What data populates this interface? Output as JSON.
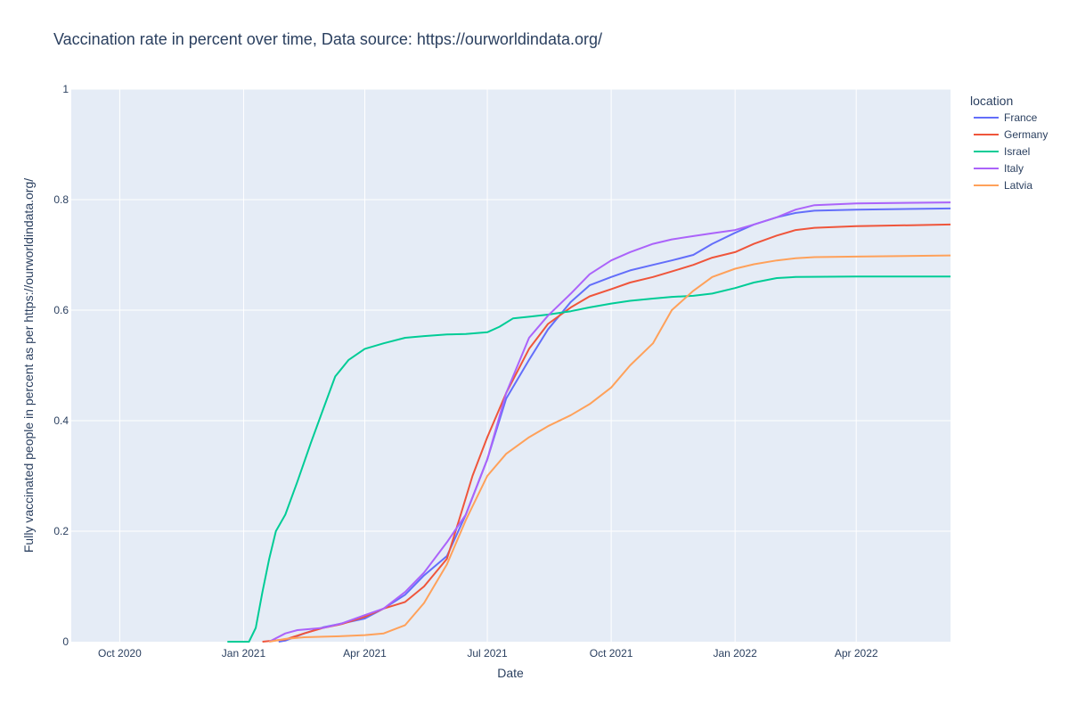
{
  "chart_data": {
    "type": "line",
    "title": "Vaccination rate in percent over time, Data source: https://ourworldindata.org/",
    "xlabel": "Date",
    "ylabel": "Fully vaccinated people in percent as per https://ourworldindata.org/",
    "xlim": [
      "2020-08-26",
      "2022-06-10"
    ],
    "ylim": [
      0,
      1
    ],
    "x_ticks": [
      {
        "date": "2020-10-01",
        "label": "Oct 2020"
      },
      {
        "date": "2021-01-01",
        "label": "Jan 2021"
      },
      {
        "date": "2021-04-01",
        "label": "Apr 2021"
      },
      {
        "date": "2021-07-01",
        "label": "Jul 2021"
      },
      {
        "date": "2021-10-01",
        "label": "Oct 2021"
      },
      {
        "date": "2022-01-01",
        "label": "Jan 2022"
      },
      {
        "date": "2022-04-01",
        "label": "Apr 2022"
      }
    ],
    "y_ticks": [
      {
        "value": 0,
        "label": "0"
      },
      {
        "value": 0.2,
        "label": "0.2"
      },
      {
        "value": 0.4,
        "label": "0.4"
      },
      {
        "value": 0.6,
        "label": "0.6"
      },
      {
        "value": 0.8,
        "label": "0.8"
      },
      {
        "value": 1,
        "label": "1"
      }
    ],
    "grid": true,
    "background": "#e5ecf6",
    "legend": {
      "title": "location",
      "placement": "right"
    },
    "series": [
      {
        "name": "France",
        "color": "#636efa",
        "points": [
          [
            "2021-01-27",
            0
          ],
          [
            "2021-02-01",
            0.002
          ],
          [
            "2021-02-15",
            0.015
          ],
          [
            "2021-03-01",
            0.026
          ],
          [
            "2021-03-15",
            0.033
          ],
          [
            "2021-04-01",
            0.042
          ],
          [
            "2021-04-15",
            0.06
          ],
          [
            "2021-05-01",
            0.085
          ],
          [
            "2021-05-15",
            0.12
          ],
          [
            "2021-06-01",
            0.155
          ],
          [
            "2021-06-15",
            0.23
          ],
          [
            "2021-07-01",
            0.33
          ],
          [
            "2021-07-15",
            0.44
          ],
          [
            "2021-08-01",
            0.51
          ],
          [
            "2021-08-15",
            0.565
          ],
          [
            "2021-09-01",
            0.615
          ],
          [
            "2021-09-15",
            0.645
          ],
          [
            "2021-10-01",
            0.66
          ],
          [
            "2021-10-15",
            0.672
          ],
          [
            "2021-11-01",
            0.682
          ],
          [
            "2021-11-15",
            0.69
          ],
          [
            "2021-12-01",
            0.7
          ],
          [
            "2021-12-15",
            0.72
          ],
          [
            "2022-01-01",
            0.74
          ],
          [
            "2022-01-15",
            0.755
          ],
          [
            "2022-02-01",
            0.768
          ],
          [
            "2022-02-15",
            0.776
          ],
          [
            "2022-03-01",
            0.78
          ],
          [
            "2022-04-01",
            0.782
          ],
          [
            "2022-06-10",
            0.784
          ]
        ]
      },
      {
        "name": "Germany",
        "color": "#ef553b",
        "points": [
          [
            "2021-01-15",
            0
          ],
          [
            "2021-02-01",
            0.004
          ],
          [
            "2021-02-15",
            0.015
          ],
          [
            "2021-03-01",
            0.025
          ],
          [
            "2021-03-15",
            0.032
          ],
          [
            "2021-04-01",
            0.045
          ],
          [
            "2021-04-15",
            0.06
          ],
          [
            "2021-05-01",
            0.072
          ],
          [
            "2021-05-15",
            0.1
          ],
          [
            "2021-06-01",
            0.15
          ],
          [
            "2021-06-10",
            0.22
          ],
          [
            "2021-06-20",
            0.3
          ],
          [
            "2021-07-01",
            0.37
          ],
          [
            "2021-07-15",
            0.45
          ],
          [
            "2021-08-01",
            0.53
          ],
          [
            "2021-08-15",
            0.575
          ],
          [
            "2021-09-01",
            0.605
          ],
          [
            "2021-09-15",
            0.625
          ],
          [
            "2021-10-01",
            0.638
          ],
          [
            "2021-10-15",
            0.65
          ],
          [
            "2021-11-01",
            0.66
          ],
          [
            "2021-11-15",
            0.67
          ],
          [
            "2021-12-01",
            0.682
          ],
          [
            "2021-12-15",
            0.695
          ],
          [
            "2022-01-01",
            0.705
          ],
          [
            "2022-01-15",
            0.72
          ],
          [
            "2022-02-01",
            0.735
          ],
          [
            "2022-02-15",
            0.745
          ],
          [
            "2022-03-01",
            0.749
          ],
          [
            "2022-04-01",
            0.752
          ],
          [
            "2022-06-10",
            0.755
          ]
        ]
      },
      {
        "name": "Israel",
        "color": "#00cc96",
        "points": [
          [
            "2020-12-20",
            0
          ],
          [
            "2021-01-05",
            0
          ],
          [
            "2021-01-10",
            0.025
          ],
          [
            "2021-01-15",
            0.09
          ],
          [
            "2021-01-20",
            0.15
          ],
          [
            "2021-01-25",
            0.2
          ],
          [
            "2021-02-01",
            0.23
          ],
          [
            "2021-02-10",
            0.29
          ],
          [
            "2021-02-20",
            0.36
          ],
          [
            "2021-03-01",
            0.42
          ],
          [
            "2021-03-10",
            0.48
          ],
          [
            "2021-03-20",
            0.51
          ],
          [
            "2021-04-01",
            0.53
          ],
          [
            "2021-04-15",
            0.54
          ],
          [
            "2021-05-01",
            0.55
          ],
          [
            "2021-05-15",
            0.553
          ],
          [
            "2021-06-01",
            0.556
          ],
          [
            "2021-06-15",
            0.557
          ],
          [
            "2021-07-01",
            0.56
          ],
          [
            "2021-07-10",
            0.57
          ],
          [
            "2021-07-20",
            0.585
          ],
          [
            "2021-08-01",
            0.588
          ],
          [
            "2021-08-15",
            0.592
          ],
          [
            "2021-09-01",
            0.598
          ],
          [
            "2021-09-15",
            0.605
          ],
          [
            "2021-10-01",
            0.612
          ],
          [
            "2021-10-15",
            0.617
          ],
          [
            "2021-11-01",
            0.621
          ],
          [
            "2021-11-15",
            0.624
          ],
          [
            "2021-12-01",
            0.626
          ],
          [
            "2021-12-15",
            0.63
          ],
          [
            "2022-01-01",
            0.64
          ],
          [
            "2022-01-15",
            0.65
          ],
          [
            "2022-02-01",
            0.658
          ],
          [
            "2022-02-15",
            0.66
          ],
          [
            "2022-04-01",
            0.661
          ],
          [
            "2022-06-10",
            0.661
          ]
        ]
      },
      {
        "name": "Italy",
        "color": "#ab63fa",
        "points": [
          [
            "2021-01-20",
            0
          ],
          [
            "2021-02-01",
            0.015
          ],
          [
            "2021-02-10",
            0.021
          ],
          [
            "2021-03-01",
            0.025
          ],
          [
            "2021-03-15",
            0.033
          ],
          [
            "2021-04-01",
            0.048
          ],
          [
            "2021-04-15",
            0.06
          ],
          [
            "2021-05-01",
            0.09
          ],
          [
            "2021-05-15",
            0.125
          ],
          [
            "2021-06-01",
            0.18
          ],
          [
            "2021-06-15",
            0.23
          ],
          [
            "2021-07-01",
            0.33
          ],
          [
            "2021-07-15",
            0.45
          ],
          [
            "2021-08-01",
            0.55
          ],
          [
            "2021-08-15",
            0.59
          ],
          [
            "2021-09-01",
            0.63
          ],
          [
            "2021-09-15",
            0.665
          ],
          [
            "2021-10-01",
            0.69
          ],
          [
            "2021-10-15",
            0.705
          ],
          [
            "2021-11-01",
            0.72
          ],
          [
            "2021-11-15",
            0.728
          ],
          [
            "2021-12-01",
            0.734
          ],
          [
            "2021-12-15",
            0.739
          ],
          [
            "2022-01-01",
            0.745
          ],
          [
            "2022-01-15",
            0.755
          ],
          [
            "2022-02-01",
            0.768
          ],
          [
            "2022-02-15",
            0.782
          ],
          [
            "2022-03-01",
            0.79
          ],
          [
            "2022-04-01",
            0.793
          ],
          [
            "2022-06-10",
            0.795
          ]
        ]
      },
      {
        "name": "Latvia",
        "color": "#ffa15a",
        "points": [
          [
            "2021-01-20",
            0
          ],
          [
            "2021-02-01",
            0.005
          ],
          [
            "2021-02-15",
            0.008
          ],
          [
            "2021-03-01",
            0.009
          ],
          [
            "2021-03-15",
            0.01
          ],
          [
            "2021-04-01",
            0.012
          ],
          [
            "2021-04-15",
            0.015
          ],
          [
            "2021-05-01",
            0.03
          ],
          [
            "2021-05-15",
            0.07
          ],
          [
            "2021-06-01",
            0.14
          ],
          [
            "2021-06-15",
            0.22
          ],
          [
            "2021-07-01",
            0.3
          ],
          [
            "2021-07-15",
            0.34
          ],
          [
            "2021-08-01",
            0.37
          ],
          [
            "2021-08-15",
            0.39
          ],
          [
            "2021-09-01",
            0.41
          ],
          [
            "2021-09-15",
            0.43
          ],
          [
            "2021-10-01",
            0.46
          ],
          [
            "2021-10-15",
            0.5
          ],
          [
            "2021-11-01",
            0.54
          ],
          [
            "2021-11-15",
            0.6
          ],
          [
            "2021-12-01",
            0.635
          ],
          [
            "2021-12-15",
            0.66
          ],
          [
            "2022-01-01",
            0.675
          ],
          [
            "2022-01-15",
            0.683
          ],
          [
            "2022-02-01",
            0.69
          ],
          [
            "2022-02-15",
            0.694
          ],
          [
            "2022-03-01",
            0.696
          ],
          [
            "2022-04-01",
            0.697
          ],
          [
            "2022-06-10",
            0.699
          ]
        ]
      }
    ]
  }
}
